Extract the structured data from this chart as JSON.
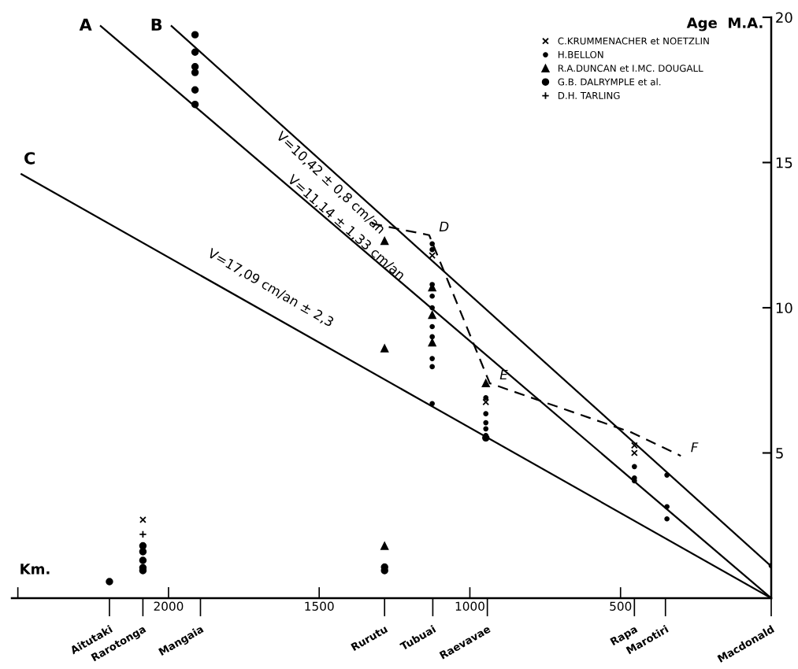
{
  "chart_data": {
    "type": "scatter",
    "xlabel": "Km.",
    "ylabel": "Age  M.A.",
    "xlim": [
      2520,
      0
    ],
    "ylim": [
      0,
      20
    ],
    "xticks": [
      {
        "value": 2500,
        "label": null
      },
      2000,
      1500,
      1000,
      500
    ],
    "yticks": [
      {
        "value": 0,
        "label": null
      },
      5,
      10,
      15,
      20
    ],
    "grid": false,
    "legend": "top right",
    "series": [
      {
        "name": "C.KRUMMENACHER et NOETZLIN",
        "color": "#000000",
        "marker": "cross",
        "x": [
          2085,
          1125,
          947,
          454,
          454
        ],
        "values": [
          2.7,
          11.8,
          6.75,
          5.26,
          5.0
        ]
      },
      {
        "name": "H.BELLON",
        "color": "#000000",
        "marker": "circle",
        "x": [
          1125,
          1125,
          1125,
          1125,
          1125,
          1125,
          1125,
          1125,
          1125,
          1125,
          947,
          947,
          947,
          947,
          947,
          454,
          454,
          454,
          346,
          346,
          346,
          0
        ],
        "values": [
          12.2,
          12.0,
          10.8,
          10.4,
          10.0,
          9.35,
          9.0,
          8.25,
          7.97,
          6.7,
          6.9,
          6.35,
          6.04,
          5.83,
          5.6,
          4.53,
          4.14,
          4.04,
          4.24,
          3.15,
          2.73,
          1.12
        ]
      },
      {
        "name": "R.A.DUNCAN et I.MC. DOUGALL",
        "color": "#000000",
        "marker": "triangle",
        "x": [
          1283,
          1283,
          1283,
          1125,
          1125,
          1125,
          947
        ],
        "values": [
          12.3,
          8.6,
          1.8,
          10.7,
          9.75,
          8.8,
          7.4
        ]
      },
      {
        "name": "G.B. DALRYMPLE et al.",
        "color": "#000000",
        "marker": "square",
        "x": [
          1912,
          1912,
          1912,
          1912,
          1912,
          1912,
          2196,
          2085,
          2085,
          2085,
          2085,
          2085,
          1283,
          1283,
          947
        ],
        "values": [
          19.4,
          18.8,
          18.3,
          18.1,
          17.5,
          17.0,
          0.57,
          1.8,
          1.6,
          1.3,
          1.05,
          0.95,
          1.07,
          0.95,
          5.52
        ]
      },
      {
        "name": "D.H. TARLING",
        "color": "#000000",
        "marker": "plus",
        "x": [
          2085
        ],
        "values": [
          2.2
        ]
      },
      {
        "type": "line",
        "name": "A",
        "color": "#000000",
        "line_style": "solid",
        "x": [
          2225,
          0
        ],
        "values": [
          19.7,
          0
        ]
      },
      {
        "type": "line",
        "name": "B",
        "color": "#000000",
        "line_style": "solid",
        "x": [
          1990,
          0
        ],
        "values": [
          19.7,
          1.1
        ]
      },
      {
        "type": "line",
        "name": "C",
        "color": "#000000",
        "line_style": "solid",
        "x": [
          2488,
          0
        ],
        "values": [
          14.6,
          0
        ]
      },
      {
        "type": "line",
        "color": "#000000",
        "line_style": "dashed",
        "x": [
          1326,
          1135,
          934,
          462,
          300
        ],
        "values": [
          12.9,
          12.5,
          7.4,
          5.7,
          4.9
        ]
      }
    ],
    "annotations": [
      "V=10,42 ± 0,8 cm/an",
      "V=11,14 ± 1,33 cm/an",
      "V=17,09 cm/an ± 2,3",
      {
        "text": "D",
        "x": 1135,
        "y": 12.5
      },
      {
        "text": "E",
        "x": 934,
        "y": 7.4
      },
      {
        "text": "F",
        "x": 300,
        "y": 4.9
      }
    ],
    "ref_lines": [
      {
        "axis": "x",
        "value": 2196,
        "label": "Aitutaki"
      },
      {
        "axis": "x",
        "value": 2085,
        "label": "Rarotonga"
      },
      {
        "axis": "x",
        "value": 1894,
        "label": "Mangaia"
      },
      {
        "axis": "x",
        "value": 1283,
        "label": "Rurutu"
      },
      {
        "axis": "x",
        "value": 1123,
        "label": "Tubuai"
      },
      {
        "axis": "x",
        "value": 942,
        "label": "Raevavae"
      },
      {
        "axis": "x",
        "value": 454,
        "label": "Rapa"
      },
      {
        "axis": "x",
        "value": 351,
        "label": "Marotiri"
      },
      {
        "axis": "x",
        "value": 0,
        "label": "Macdonald"
      }
    ]
  }
}
